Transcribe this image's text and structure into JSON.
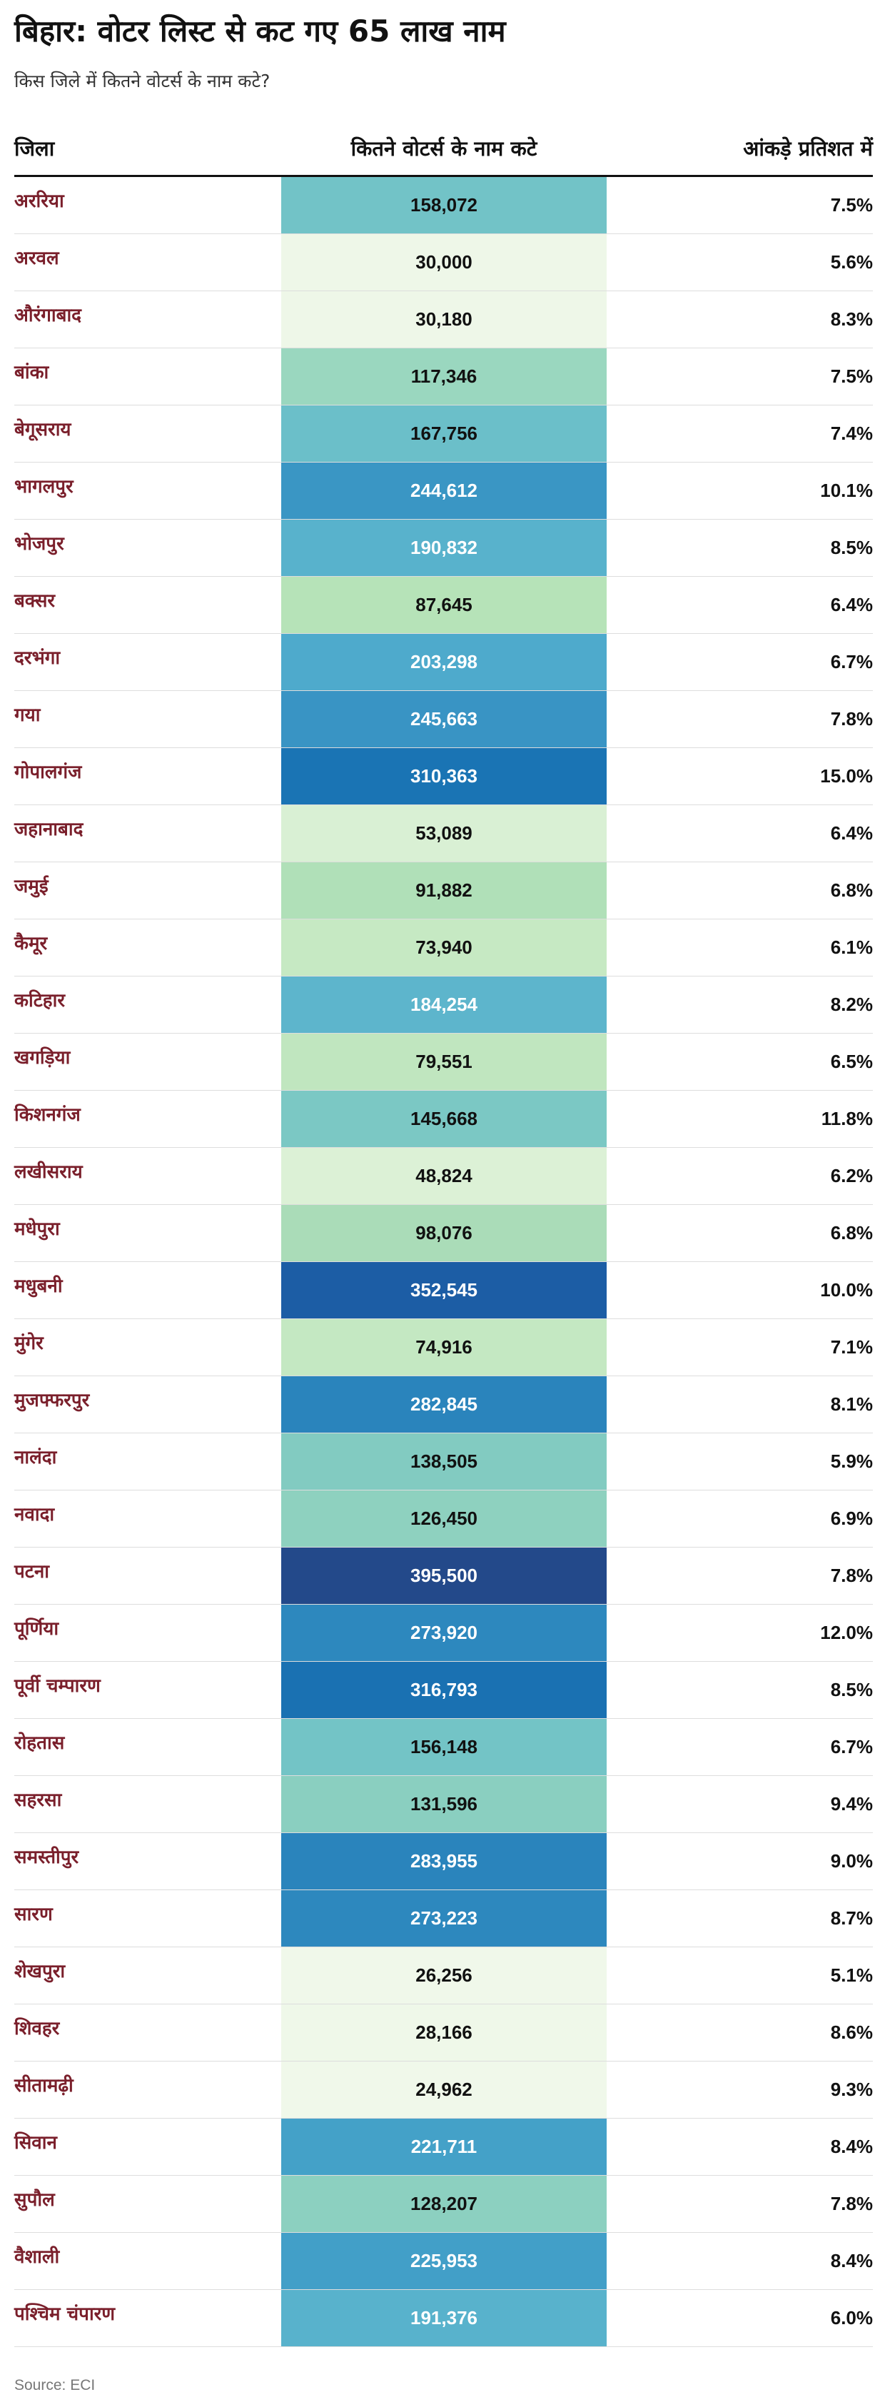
{
  "title": "बिहार: वोटर लिस्ट से कट गए 65 लाख नाम",
  "subtitle": "किस जिले में कितने वोटर्स के नाम कटे?",
  "source": "Source: ECI",
  "chart_data": {
    "type": "table",
    "columns": [
      "जिला",
      "कितने वोटर्स के नाम कटे",
      "आंकड़े प्रतिशत में"
    ],
    "color_scale": {
      "low": "#edf7e6",
      "high": "#23498a",
      "light_text": "#ffffff",
      "dark_text": "#111111"
    },
    "rows": [
      {
        "district": "अररिया",
        "count": "158,072",
        "percent": "7.5%",
        "color": "#72c3c7",
        "text_color": "#111111"
      },
      {
        "district": "अरवल",
        "count": "30,000",
        "percent": "5.6%",
        "color": "#eef7e8",
        "text_color": "#111111"
      },
      {
        "district": "औरंगाबाद",
        "count": "30,180",
        "percent": "8.3%",
        "color": "#eef7e8",
        "text_color": "#111111"
      },
      {
        "district": "बांका",
        "count": "117,346",
        "percent": "7.5%",
        "color": "#9ad7bf",
        "text_color": "#111111"
      },
      {
        "district": "बेगूसराय",
        "count": "167,756",
        "percent": "7.4%",
        "color": "#6bbfc9",
        "text_color": "#111111"
      },
      {
        "district": "भागलपुर",
        "count": "244,612",
        "percent": "10.1%",
        "color": "#3a96c4",
        "text_color": "#ffffff"
      },
      {
        "district": "भोजपुर",
        "count": "190,832",
        "percent": "8.5%",
        "color": "#58b2cc",
        "text_color": "#ffffff"
      },
      {
        "district": "बक्सर",
        "count": "87,645",
        "percent": "6.4%",
        "color": "#b6e3b8",
        "text_color": "#111111"
      },
      {
        "district": "दरभंगा",
        "count": "203,298",
        "percent": "6.7%",
        "color": "#4eaacc",
        "text_color": "#ffffff"
      },
      {
        "district": "गया",
        "count": "245,663",
        "percent": "7.8%",
        "color": "#3994c4",
        "text_color": "#ffffff"
      },
      {
        "district": "गोपालगंज",
        "count": "310,363",
        "percent": "15.0%",
        "color": "#1a74b4",
        "text_color": "#ffffff"
      },
      {
        "district": "जहानाबाद",
        "count": "53,089",
        "percent": "6.4%",
        "color": "#d9f0d4",
        "text_color": "#111111"
      },
      {
        "district": "जमुई",
        "count": "91,882",
        "percent": "6.8%",
        "color": "#b0e0b8",
        "text_color": "#111111"
      },
      {
        "district": "कैमूर",
        "count": "73,940",
        "percent": "6.1%",
        "color": "#c6e9c3",
        "text_color": "#111111"
      },
      {
        "district": "कटिहार",
        "count": "184,254",
        "percent": "8.2%",
        "color": "#5db5cc",
        "text_color": "#ffffff"
      },
      {
        "district": "खगड़िया",
        "count": "79,551",
        "percent": "6.5%",
        "color": "#c0e6bf",
        "text_color": "#111111"
      },
      {
        "district": "किशनगंज",
        "count": "145,668",
        "percent": "11.8%",
        "color": "#7bc8c4",
        "text_color": "#111111"
      },
      {
        "district": "लखीसराय",
        "count": "48,824",
        "percent": "6.2%",
        "color": "#dcf1d6",
        "text_color": "#111111"
      },
      {
        "district": "मधेपुरा",
        "count": "98,076",
        "percent": "6.8%",
        "color": "#aadcb8",
        "text_color": "#111111"
      },
      {
        "district": "मधुबनी",
        "count": "352,545",
        "percent": "10.0%",
        "color": "#1c5da5",
        "text_color": "#ffffff"
      },
      {
        "district": "मुंगेर",
        "count": "74,916",
        "percent": "7.1%",
        "color": "#c4e8c2",
        "text_color": "#111111"
      },
      {
        "district": "मुजफ्फरपुर",
        "count": "282,845",
        "percent": "8.1%",
        "color": "#2a84bc",
        "text_color": "#ffffff"
      },
      {
        "district": "नालंदा",
        "count": "138,505",
        "percent": "5.9%",
        "color": "#82cbc1",
        "text_color": "#111111"
      },
      {
        "district": "नवादा",
        "count": "126,450",
        "percent": "6.9%",
        "color": "#8ed1bf",
        "text_color": "#111111"
      },
      {
        "district": "पटना",
        "count": "395,500",
        "percent": "7.8%",
        "color": "#23498a",
        "text_color": "#ffffff"
      },
      {
        "district": "पूर्णिया",
        "count": "273,920",
        "percent": "12.0%",
        "color": "#2d88be",
        "text_color": "#ffffff"
      },
      {
        "district": "पूर्वी चम्पारण",
        "count": "316,793",
        "percent": "8.5%",
        "color": "#1a71b2",
        "text_color": "#ffffff"
      },
      {
        "district": "रोहतास",
        "count": "156,148",
        "percent": "6.7%",
        "color": "#73c4c6",
        "text_color": "#111111"
      },
      {
        "district": "सहरसा",
        "count": "131,596",
        "percent": "9.4%",
        "color": "#8acfc0",
        "text_color": "#111111"
      },
      {
        "district": "समस्तीपुर",
        "count": "283,955",
        "percent": "9.0%",
        "color": "#2a84bc",
        "text_color": "#ffffff"
      },
      {
        "district": "सारण",
        "count": "273,223",
        "percent": "8.7%",
        "color": "#2d88be",
        "text_color": "#ffffff"
      },
      {
        "district": "शेखपुरा",
        "count": "26,256",
        "percent": "5.1%",
        "color": "#f0f8ea",
        "text_color": "#111111"
      },
      {
        "district": "शिवहर",
        "count": "28,166",
        "percent": "8.6%",
        "color": "#eff8e9",
        "text_color": "#111111"
      },
      {
        "district": "सीतामढ़ी",
        "count": "24,962",
        "percent": "9.3%",
        "color": "#f0f8ea",
        "text_color": "#111111"
      },
      {
        "district": "सिवान",
        "count": "221,711",
        "percent": "8.4%",
        "color": "#44a1c8",
        "text_color": "#ffffff"
      },
      {
        "district": "सुपौल",
        "count": "128,207",
        "percent": "7.8%",
        "color": "#8cd0c0",
        "text_color": "#111111"
      },
      {
        "district": "वैशाली",
        "count": "225,953",
        "percent": "8.4%",
        "color": "#429fc8",
        "text_color": "#ffffff"
      },
      {
        "district": "पश्चिम चंपारण",
        "count": "191,376",
        "percent": "6.0%",
        "color": "#58b2cc",
        "text_color": "#ffffff"
      }
    ]
  }
}
